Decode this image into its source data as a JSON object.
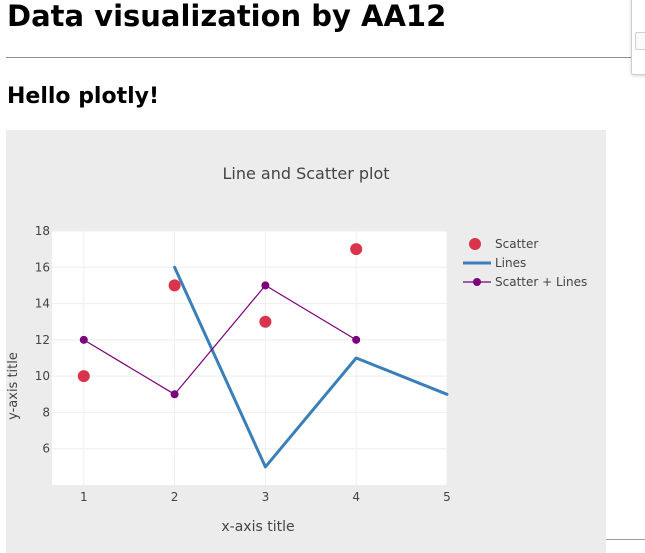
{
  "page": {
    "title": "Data visualization by AA12",
    "subheading": "Hello plotly!"
  },
  "colors": {
    "card_bg": "#ececec",
    "plot_bg": "#ffffff",
    "grid": "#eeeeee",
    "scatter": "#d9344b",
    "lines": "#3b7fb8",
    "scatter_lines": "#7a007a",
    "text": "#444444"
  },
  "chart_data": {
    "type": "scatter",
    "title": "Line and Scatter plot",
    "xlabel": "x-axis title",
    "ylabel": "y-axis title",
    "xlim": [
      0.65,
      5
    ],
    "ylim": [
      4,
      18
    ],
    "xticks": [
      "1",
      "2",
      "3",
      "4",
      "5"
    ],
    "yticks": [
      "6",
      "8",
      "10",
      "12",
      "14",
      "16",
      "18"
    ],
    "grid": true,
    "legend_position": "right",
    "series": [
      {
        "name": "Scatter",
        "mode": "markers",
        "color": "#d9344b",
        "x": [
          1,
          2,
          3,
          4
        ],
        "y": [
          10,
          15,
          13,
          17
        ]
      },
      {
        "name": "Lines",
        "mode": "lines",
        "color": "#3b7fb8",
        "x": [
          2,
          3,
          4,
          5
        ],
        "y": [
          16,
          5,
          11,
          9
        ]
      },
      {
        "name": "Scatter + Lines",
        "mode": "lines+markers",
        "color": "#7a007a",
        "x": [
          1,
          2,
          3,
          4
        ],
        "y": [
          12,
          9,
          15,
          12
        ]
      }
    ]
  }
}
